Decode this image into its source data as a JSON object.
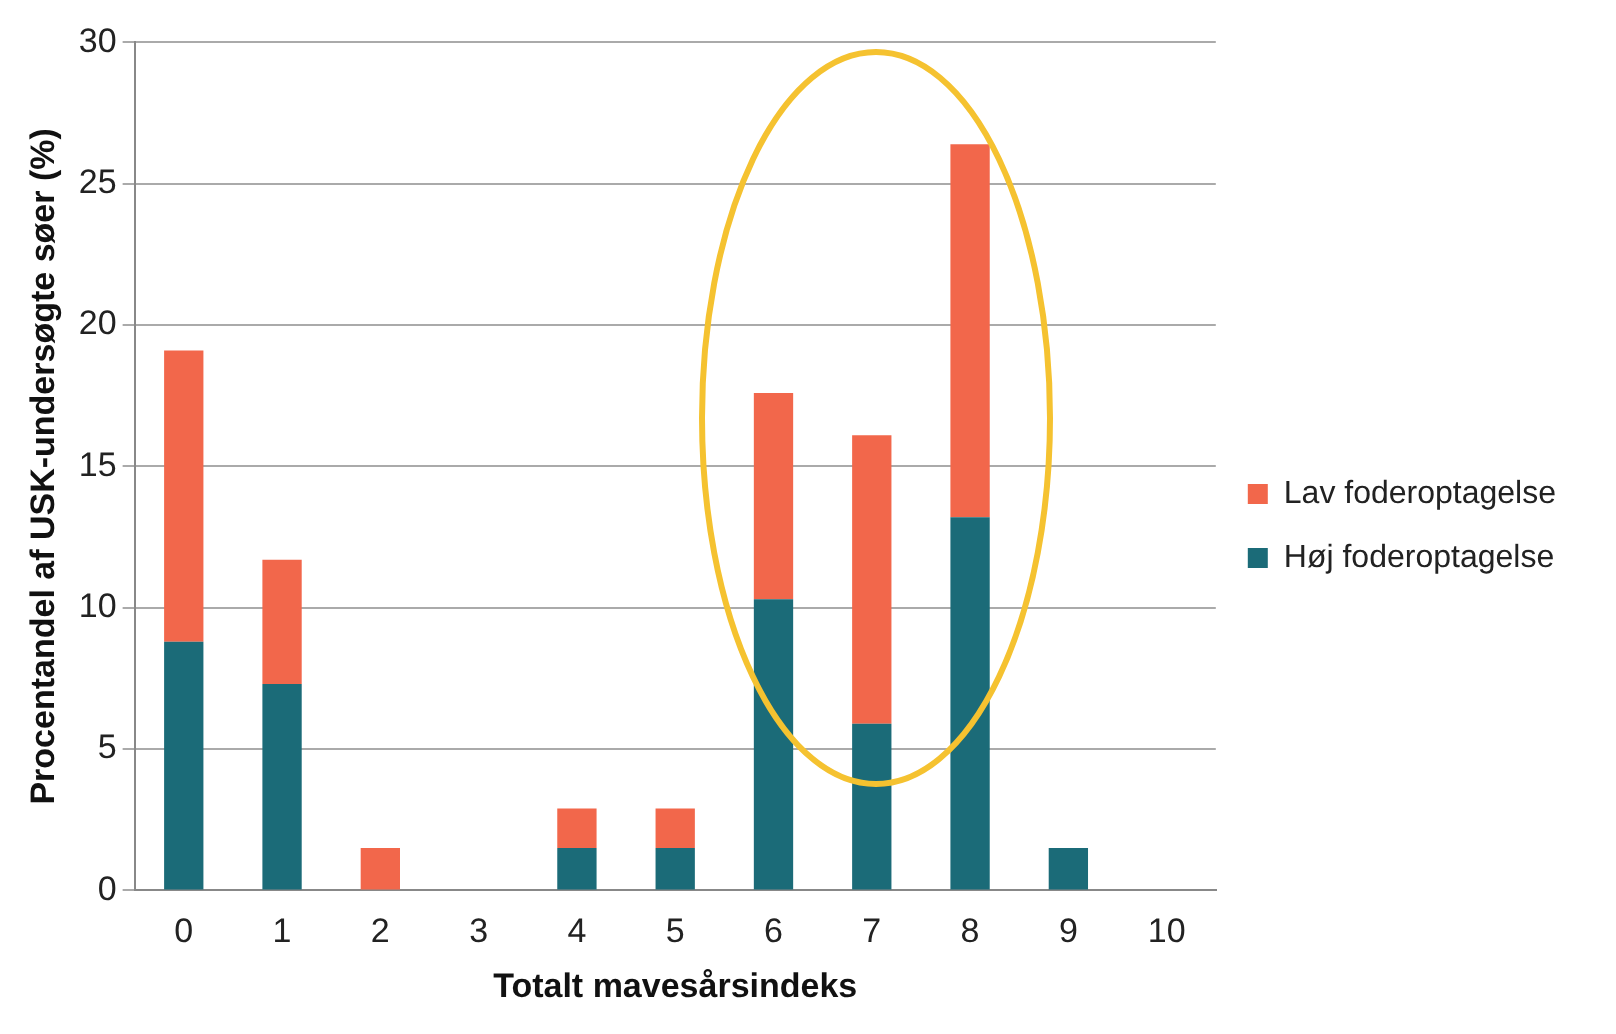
{
  "chart_data": {
    "type": "bar",
    "stacked": true,
    "xlabel": "Totalt mavesårsindeks",
    "ylabel": "Procentandel af USK-undersøgte søer (%)",
    "categories": [
      "0",
      "1",
      "2",
      "3",
      "4",
      "5",
      "6",
      "7",
      "8",
      "9",
      "10"
    ],
    "series": [
      {
        "name": "Høj foderoptagelse",
        "color": "#1b6b78",
        "values": [
          8.8,
          7.3,
          0,
          0,
          1.5,
          1.5,
          10.3,
          5.9,
          13.2,
          1.5,
          0
        ]
      },
      {
        "name": "Lav foderoptagelse",
        "color": "#f2674b",
        "values": [
          10.3,
          4.4,
          1.5,
          0,
          1.4,
          1.4,
          7.3,
          10.2,
          13.2,
          0,
          0
        ]
      }
    ],
    "ylim": [
      0,
      30
    ],
    "yticks": [
      0,
      5,
      10,
      15,
      20,
      25,
      30
    ],
    "grid": "y",
    "legend": "right"
  }
}
